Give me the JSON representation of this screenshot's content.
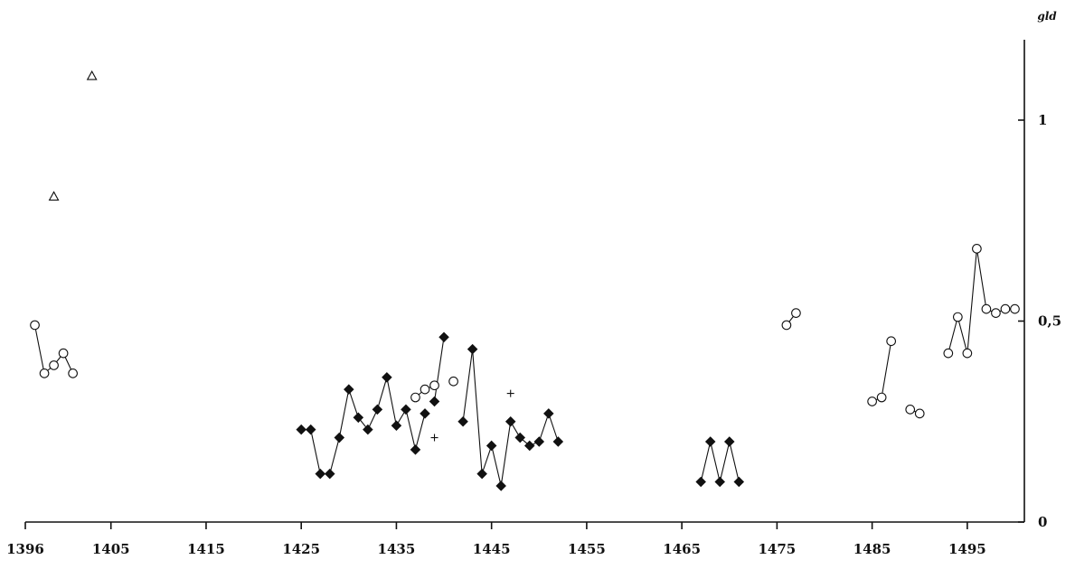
{
  "chart_data": {
    "type": "scatter",
    "title": "",
    "xlabel": "",
    "ylabel": "gld",
    "xlim": [
      1396,
      1501
    ],
    "ylim": [
      0,
      1.2
    ],
    "x_ticks": [
      1396,
      1405,
      1415,
      1425,
      1435,
      1445,
      1455,
      1465,
      1475,
      1485,
      1495
    ],
    "y_ticks": [
      {
        "value": 0,
        "label": "0"
      },
      {
        "value": 0.5,
        "label": "0,5"
      },
      {
        "value": 1,
        "label": "1"
      }
    ],
    "grid": false,
    "y_axis_side": "right",
    "series": [
      {
        "marker": "circle",
        "segments": [
          [
            [
              1397,
              0.49
            ],
            [
              1398,
              0.37
            ],
            [
              1399,
              0.39
            ],
            [
              1400,
              0.42
            ],
            [
              1401,
              0.37
            ]
          ],
          [
            [
              1437,
              0.31
            ],
            [
              1438,
              0.33
            ],
            [
              1439,
              0.34
            ]
          ],
          [
            [
              1441,
              0.35
            ]
          ],
          [
            [
              1476,
              0.49
            ],
            [
              1477,
              0.52
            ]
          ],
          [
            [
              1485,
              0.3
            ],
            [
              1486,
              0.31
            ],
            [
              1487,
              0.45
            ]
          ],
          [
            [
              1489,
              0.28
            ],
            [
              1490,
              0.27
            ]
          ],
          [
            [
              1493,
              0.42
            ],
            [
              1494,
              0.51
            ],
            [
              1495,
              0.42
            ],
            [
              1496,
              0.68
            ],
            [
              1497,
              0.53
            ],
            [
              1498,
              0.52
            ],
            [
              1499,
              0.53
            ],
            [
              1500,
              0.53
            ]
          ]
        ]
      },
      {
        "marker": "diamond",
        "segments": [
          [
            [
              1425,
              0.23
            ],
            [
              1426,
              0.23
            ],
            [
              1427,
              0.12
            ],
            [
              1428,
              0.12
            ],
            [
              1429,
              0.21
            ],
            [
              1430,
              0.33
            ],
            [
              1431,
              0.26
            ],
            [
              1432,
              0.23
            ],
            [
              1433,
              0.28
            ],
            [
              1434,
              0.36
            ],
            [
              1435,
              0.24
            ],
            [
              1436,
              0.28
            ],
            [
              1437,
              0.18
            ],
            [
              1438,
              0.27
            ]
          ],
          [
            [
              1439,
              0.3
            ],
            [
              1440,
              0.46
            ]
          ],
          [
            [
              1442,
              0.25
            ],
            [
              1443,
              0.43
            ],
            [
              1444,
              0.12
            ],
            [
              1445,
              0.19
            ],
            [
              1446,
              0.09
            ],
            [
              1447,
              0.25
            ],
            [
              1448,
              0.21
            ],
            [
              1449,
              0.19
            ],
            [
              1450,
              0.2
            ],
            [
              1451,
              0.27
            ],
            [
              1452,
              0.2
            ]
          ],
          [
            [
              1467,
              0.1
            ],
            [
              1468,
              0.2
            ],
            [
              1469,
              0.1
            ],
            [
              1470,
              0.2
            ],
            [
              1471,
              0.1
            ]
          ]
        ]
      },
      {
        "marker": "triangle",
        "segments": [
          [
            [
              1399,
              0.81
            ]
          ],
          [
            [
              1403,
              1.11
            ]
          ]
        ]
      },
      {
        "marker": "plus",
        "segments": [
          [
            [
              1439,
              0.21
            ]
          ],
          [
            [
              1447,
              0.32
            ]
          ]
        ]
      }
    ]
  }
}
